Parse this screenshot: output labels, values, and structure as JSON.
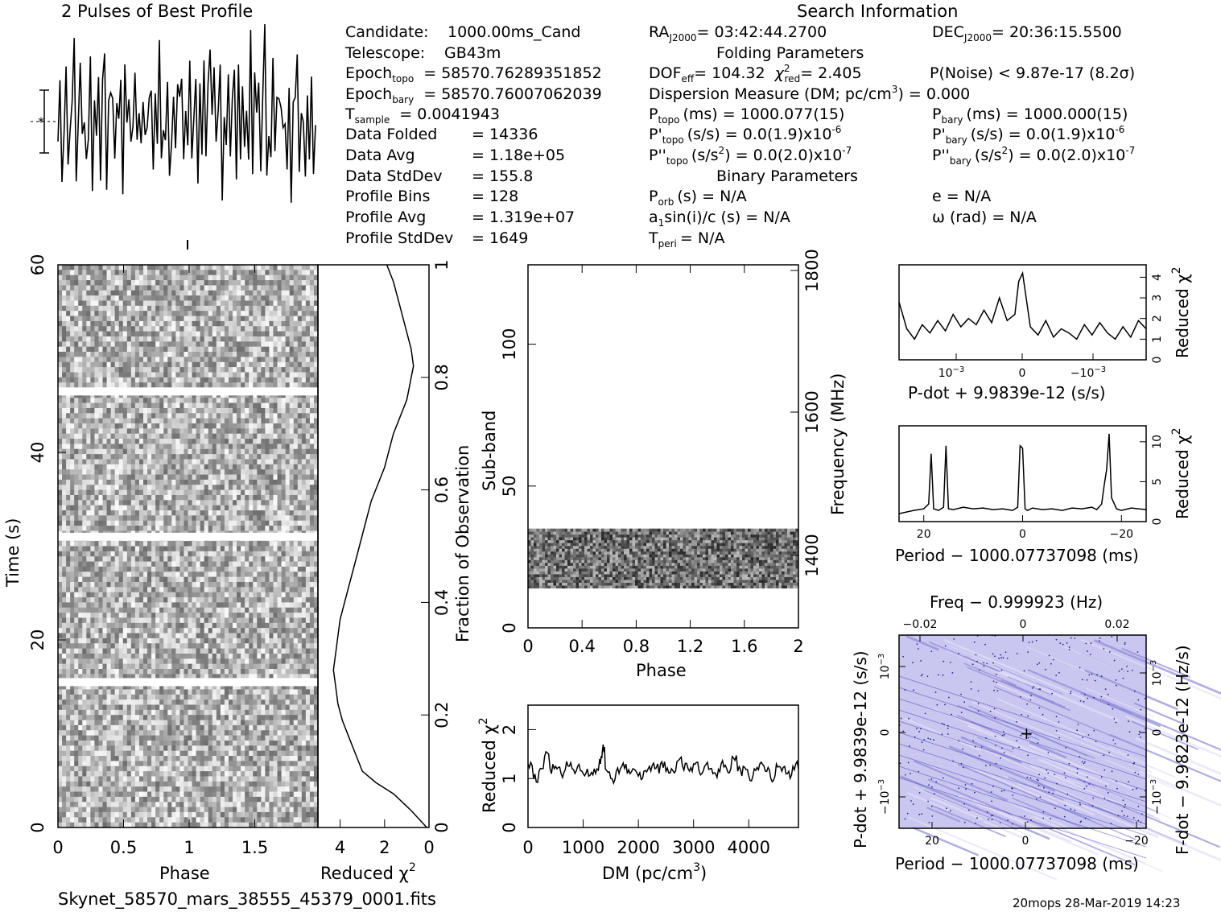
{
  "title_profile": "2 Pulses of Best Profile",
  "title_search": "Search Information",
  "filename": "Skynet_58570_mars_38555_45379_0001.fits",
  "footer": "20mops 28-Mar-2019 14:23",
  "info_left": [
    [
      "Candidate:",
      "",
      "1000.00ms_Cand"
    ],
    [
      "Telescope:",
      "",
      "GB43m"
    ],
    [
      "Epoch",
      "topo",
      "= 58570.76289351852"
    ],
    [
      "Epoch",
      "bary",
      "= 58570.76007062039"
    ],
    [
      "T",
      "sample",
      "=   0.0041943"
    ],
    [
      "Data Folded",
      "",
      "=   14336"
    ],
    [
      "Data Avg",
      "",
      "=   1.18e+05"
    ],
    [
      "Data StdDev",
      "",
      "=   155.8"
    ],
    [
      "Profile Bins",
      "",
      "=   128"
    ],
    [
      "Profile Avg",
      "",
      "=   1.319e+07"
    ],
    [
      "Profile StdDev",
      "",
      "=   1649"
    ]
  ],
  "info_mid": {
    "ra": "RA",
    "ra_sub": "J2000",
    "ra_val": "= 03:42:44.2700",
    "folding_title": "Folding Parameters",
    "dof": "DOF",
    "dof_sub": "eff",
    "dof_val": "= 104.32",
    "chi": "χ",
    "chi_sub": "red",
    "chi_val": "= 2.405",
    "dm": "Dispersion Measure (DM; pc/cm",
    "dm_val": ") = 0.000",
    "p": "P",
    "p_sub": "topo",
    "p_val": "(ms) =   1000.077(15)",
    "pd": "P'",
    "pd_sub": "topo",
    "pd_val": "(s/s) = 0.0(1.9)x10",
    "pd_exp": "-6",
    "pdd": "P''",
    "pdd_sub": "topo",
    "pdd_val": "(s/s",
    "pdd_val2": ") = 0.0(2.0)x10",
    "pdd_exp": "-7",
    "binary_title": "Binary Parameters",
    "porb": "P",
    "porb_sub": "orb",
    "porb_val": "(s) = N/A",
    "a1": "a",
    "a1_sub": "1",
    "a1_val": "sin(i)/c (s) = N/A",
    "tperi": "T",
    "tperi_sub": "peri",
    "tperi_val": "= N/A"
  },
  "info_right": {
    "dec": "DEC",
    "dec_sub": "J2000",
    "dec_val": "= 20:36:15.5500",
    "pnoise": "P(Noise) < 9.87e-17   (8.2σ)",
    "pb": "P",
    "pb_sub": "bary",
    "pb_val": "(ms) =   1000.000(15)",
    "pbd": "P'",
    "pbd_sub": "bary",
    "pbd_val": "(s/s) = 0.0(1.9)x10",
    "pbd_exp": "-6",
    "pbdd": "P''",
    "pbdd_sub": "bary",
    "pbdd_val": "(s/s",
    "pbdd_val2": ") = 0.0(2.0)x10",
    "pbdd_exp": "-7",
    "e": "e = N/A",
    "omega": "ω (rad) = N/A"
  },
  "colors": {
    "ink": "#000000",
    "ppdot_bg": "#c8c8f0",
    "ppdot_streak": "#5050c8"
  },
  "chart_data": [
    {
      "id": "profile",
      "type": "line",
      "title": "2 Pulses of Best Profile",
      "x_range": [
        0,
        2
      ],
      "note_marker": "error bar",
      "values": [
        0.42,
        0.7,
        0.35,
        0.55,
        0.81,
        0.3,
        0.62,
        0.48,
        0.9,
        0.25,
        0.58,
        0.71,
        0.4,
        0.66,
        0.33,
        0.52,
        0.78,
        0.29,
        0.6,
        0.45,
        0.85,
        0.38,
        0.57,
        0.69,
        0.31,
        0.64,
        0.5,
        0.74,
        0.36,
        0.59,
        0.47,
        0.8,
        0.27,
        0.63,
        0.53,
        0.72,
        0.4,
        0.55,
        0.88,
        0.33,
        0.61,
        0.46,
        0.76,
        0.3,
        0.58,
        0.5,
        0.68,
        0.37,
        0.62,
        0.44,
        0.83,
        0.28,
        0.6,
        0.52,
        0.73,
        0.39,
        0.56,
        0.67,
        0.32,
        0.65,
        0.48,
        0.79,
        0.35,
        0.57,
        0.42,
        0.7,
        0.35,
        0.55,
        0.81,
        0.3,
        0.62,
        0.48,
        0.9,
        0.25,
        0.58,
        0.71,
        0.4,
        0.66,
        0.33,
        0.52,
        0.78,
        0.29,
        0.6,
        0.45,
        0.85,
        0.38,
        0.57,
        0.69,
        0.31,
        0.64,
        0.5,
        0.74,
        0.36,
        0.59,
        0.47,
        0.8,
        0.27,
        0.63,
        0.53,
        0.72,
        0.4,
        0.55,
        0.88,
        0.33,
        0.61,
        0.46,
        0.76,
        0.3,
        0.58,
        0.5,
        0.68,
        0.37,
        0.62,
        0.44,
        0.83,
        0.28,
        0.6,
        0.52,
        0.73,
        0.39,
        0.56,
        0.67,
        0.32,
        0.65,
        0.48,
        0.79,
        0.35,
        0.57
      ]
    },
    {
      "id": "time_phase",
      "type": "heatmap",
      "xlabel": "Phase",
      "ylabel": "Time (s)",
      "xlim": [
        0,
        2
      ],
      "ylim": [
        0,
        60
      ],
      "x_ticks": [
        "0",
        "0.5",
        "1",
        "1.5"
      ],
      "y_ticks": [
        "0",
        "20",
        "40",
        "60"
      ],
      "gaps_s": [
        15.5,
        31.0,
        46.5
      ]
    },
    {
      "id": "time_redchi",
      "type": "line",
      "xlabel": "Reduced χ",
      "xlabel_exp": "2",
      "xlim": [
        5,
        0
      ],
      "ylabel_right": "Fraction of Observation",
      "x_ticks": [
        "4",
        "2",
        "0"
      ],
      "y_ticks_right": [
        "0",
        "0.2",
        "0.4",
        "0.6",
        "0.8",
        "1"
      ],
      "x": [
        0.1,
        0.8,
        1.6,
        2.4,
        3.0,
        3.3,
        3.6,
        3.9,
        4.1,
        4.2,
        4.3,
        4.2,
        4.1,
        4.0,
        3.8,
        3.6,
        3.4,
        3.2,
        3.0,
        2.8,
        2.6,
        2.3,
        2.0,
        1.8,
        1.6,
        1.4,
        1.2,
        1.0,
        0.9,
        0.8,
        0.7,
        0.8,
        1.0,
        1.2,
        1.4,
        1.6,
        1.9
      ],
      "y": [
        0.0,
        0.03,
        0.06,
        0.08,
        0.1,
        0.13,
        0.16,
        0.19,
        0.22,
        0.25,
        0.28,
        0.31,
        0.34,
        0.37,
        0.4,
        0.43,
        0.46,
        0.49,
        0.52,
        0.55,
        0.58,
        0.61,
        0.64,
        0.67,
        0.7,
        0.72,
        0.74,
        0.76,
        0.78,
        0.8,
        0.82,
        0.85,
        0.88,
        0.91,
        0.94,
        0.97,
        1.0
      ]
    },
    {
      "id": "subband_phase",
      "type": "heatmap",
      "xlabel": "Phase",
      "ylabel": "Sub-band",
      "ylabel_right": "Frequency (MHz)",
      "xlim": [
        0,
        2
      ],
      "ylim": [
        0,
        128
      ],
      "x_ticks": [
        "0",
        "0.4",
        "0.8",
        "1.2",
        "1.6",
        "2"
      ],
      "y_ticks": [
        "0",
        "50",
        "100"
      ],
      "y_ticks_right": [
        "1400",
        "1600",
        "1800"
      ],
      "filled_subbands": [
        14,
        35
      ]
    },
    {
      "id": "dm_chi",
      "type": "line",
      "xlabel": "DM (pc/cm",
      "xlabel_exp": "3",
      "xlabel_end": ")",
      "ylabel": "Reduced χ",
      "ylabel_exp": "2",
      "xlim": [
        0,
        4900
      ],
      "ylim": [
        0,
        2.5
      ],
      "x_ticks": [
        "0",
        "1000",
        "2000",
        "3000",
        "4000"
      ],
      "y_ticks": [
        "0",
        "1",
        "2"
      ],
      "x": [
        0,
        100,
        200,
        300,
        400,
        500,
        600,
        700,
        800,
        900,
        1000,
        1100,
        1200,
        1300,
        1350,
        1400,
        1500,
        1600,
        1700,
        1800,
        1900,
        2000,
        2100,
        2200,
        2300,
        2400,
        2500,
        2600,
        2700,
        2800,
        2900,
        3000,
        3100,
        3200,
        3300,
        3400,
        3500,
        3600,
        3700,
        3800,
        3900,
        4000,
        4100,
        4200,
        4300,
        4400,
        4500,
        4600,
        4700,
        4800,
        4900
      ],
      "y": [
        1.3,
        1.0,
        1.15,
        1.45,
        1.2,
        1.25,
        1.1,
        1.35,
        1.2,
        1.25,
        1.1,
        1.05,
        1.2,
        1.4,
        1.6,
        1.2,
        1.0,
        1.15,
        1.25,
        1.1,
        1.2,
        1.05,
        1.15,
        1.25,
        1.2,
        1.3,
        1.15,
        1.2,
        1.35,
        1.25,
        1.2,
        1.3,
        1.15,
        1.25,
        1.2,
        1.1,
        1.3,
        1.2,
        1.45,
        1.15,
        1.25,
        1.05,
        1.2,
        1.3,
        1.15,
        1.0,
        1.3,
        1.15,
        1.1,
        1.25,
        1.2
      ]
    },
    {
      "id": "pdot_chi",
      "type": "line",
      "xlabel": "P-dot + 9.9839e-12 (s/s)",
      "ylabel_right": "Reduced χ",
      "ylabel_right_exp": "2",
      "x_ticks": [
        "10",
        "0",
        "−10"
      ],
      "x_ticks_exp": [
        "−3",
        "",
        "−3"
      ],
      "y_ticks_right": [
        "0",
        "1",
        "2",
        "3",
        "4"
      ],
      "ylim": [
        0,
        4.6
      ],
      "x": [
        -1.6,
        -1.5,
        -1.4,
        -1.3,
        -1.2,
        -1.1,
        -1.0,
        -0.9,
        -0.8,
        -0.7,
        -0.6,
        -0.5,
        -0.4,
        -0.3,
        -0.2,
        -0.1,
        -0.05,
        0,
        0.05,
        0.1,
        0.2,
        0.3,
        0.4,
        0.5,
        0.6,
        0.7,
        0.8,
        0.9,
        1.0,
        1.1,
        1.2,
        1.3,
        1.4,
        1.5,
        1.6
      ],
      "y": [
        2.8,
        1.5,
        1.0,
        1.7,
        1.3,
        1.9,
        1.4,
        2.2,
        1.6,
        2.0,
        1.7,
        2.4,
        1.8,
        3.0,
        1.9,
        2.2,
        3.8,
        4.2,
        2.9,
        1.6,
        1.2,
        1.9,
        1.1,
        1.5,
        1.3,
        1.0,
        1.7,
        1.2,
        1.8,
        1.3,
        1.0,
        1.6,
        1.1,
        1.9,
        1.5
      ]
    },
    {
      "id": "period_chi",
      "type": "line",
      "xlabel": "Period − 1000.07737098 (ms)",
      "ylabel_right": "Reduced χ",
      "ylabel_right_exp": "2",
      "x_ticks": [
        "20",
        "0",
        "−20"
      ],
      "y_ticks_right": [
        "0",
        "5",
        "10"
      ],
      "ylim": [
        0,
        12
      ],
      "x": [
        25,
        22,
        20,
        19,
        18.5,
        18,
        17,
        16,
        15.5,
        15,
        14,
        12,
        10,
        8,
        6,
        4,
        2,
        1,
        0.5,
        0,
        -0.5,
        -1,
        -2,
        -4,
        -6,
        -8,
        -10,
        -12,
        -14,
        -15,
        -16,
        -16.5,
        -17,
        -17.5,
        -18,
        -19,
        -20,
        -22,
        -25
      ],
      "y": [
        1,
        1.4,
        1.6,
        2.2,
        8.5,
        1.6,
        1.4,
        1.8,
        9.5,
        1.6,
        1.5,
        1.8,
        1.6,
        1.7,
        1.5,
        1.6,
        1.4,
        1.8,
        9.5,
        9.2,
        1.6,
        1.4,
        1.7,
        1.5,
        1.6,
        1.4,
        1.7,
        1.6,
        1.8,
        1.5,
        2.2,
        4.5,
        6.5,
        11.0,
        3.0,
        1.6,
        1.4,
        1.7,
        1.5
      ]
    },
    {
      "id": "ppdot",
      "type": "heatmap",
      "title": "Freq − 0.999923 (Hz)",
      "xlabel": "Period − 1000.07737098 (ms)",
      "ylabel": "P-dot + 9.9839e-12 (s/s)",
      "ylabel_right": "F-dot − 9.9823e-12 (Hz/s)",
      "x_ticks_bottom": [
        "20",
        "0",
        "−20"
      ],
      "x_ticks_top": [
        "−0.02",
        "0",
        "0.02"
      ],
      "y_ticks_left": [
        "10",
        "0",
        "−10"
      ],
      "y_ticks_left_exp": [
        "−3",
        "",
        "−3"
      ],
      "y_ticks_right": [
        "−10",
        "0",
        "10"
      ],
      "y_ticks_right_exp": [
        "−3",
        "",
        "−3"
      ]
    }
  ]
}
